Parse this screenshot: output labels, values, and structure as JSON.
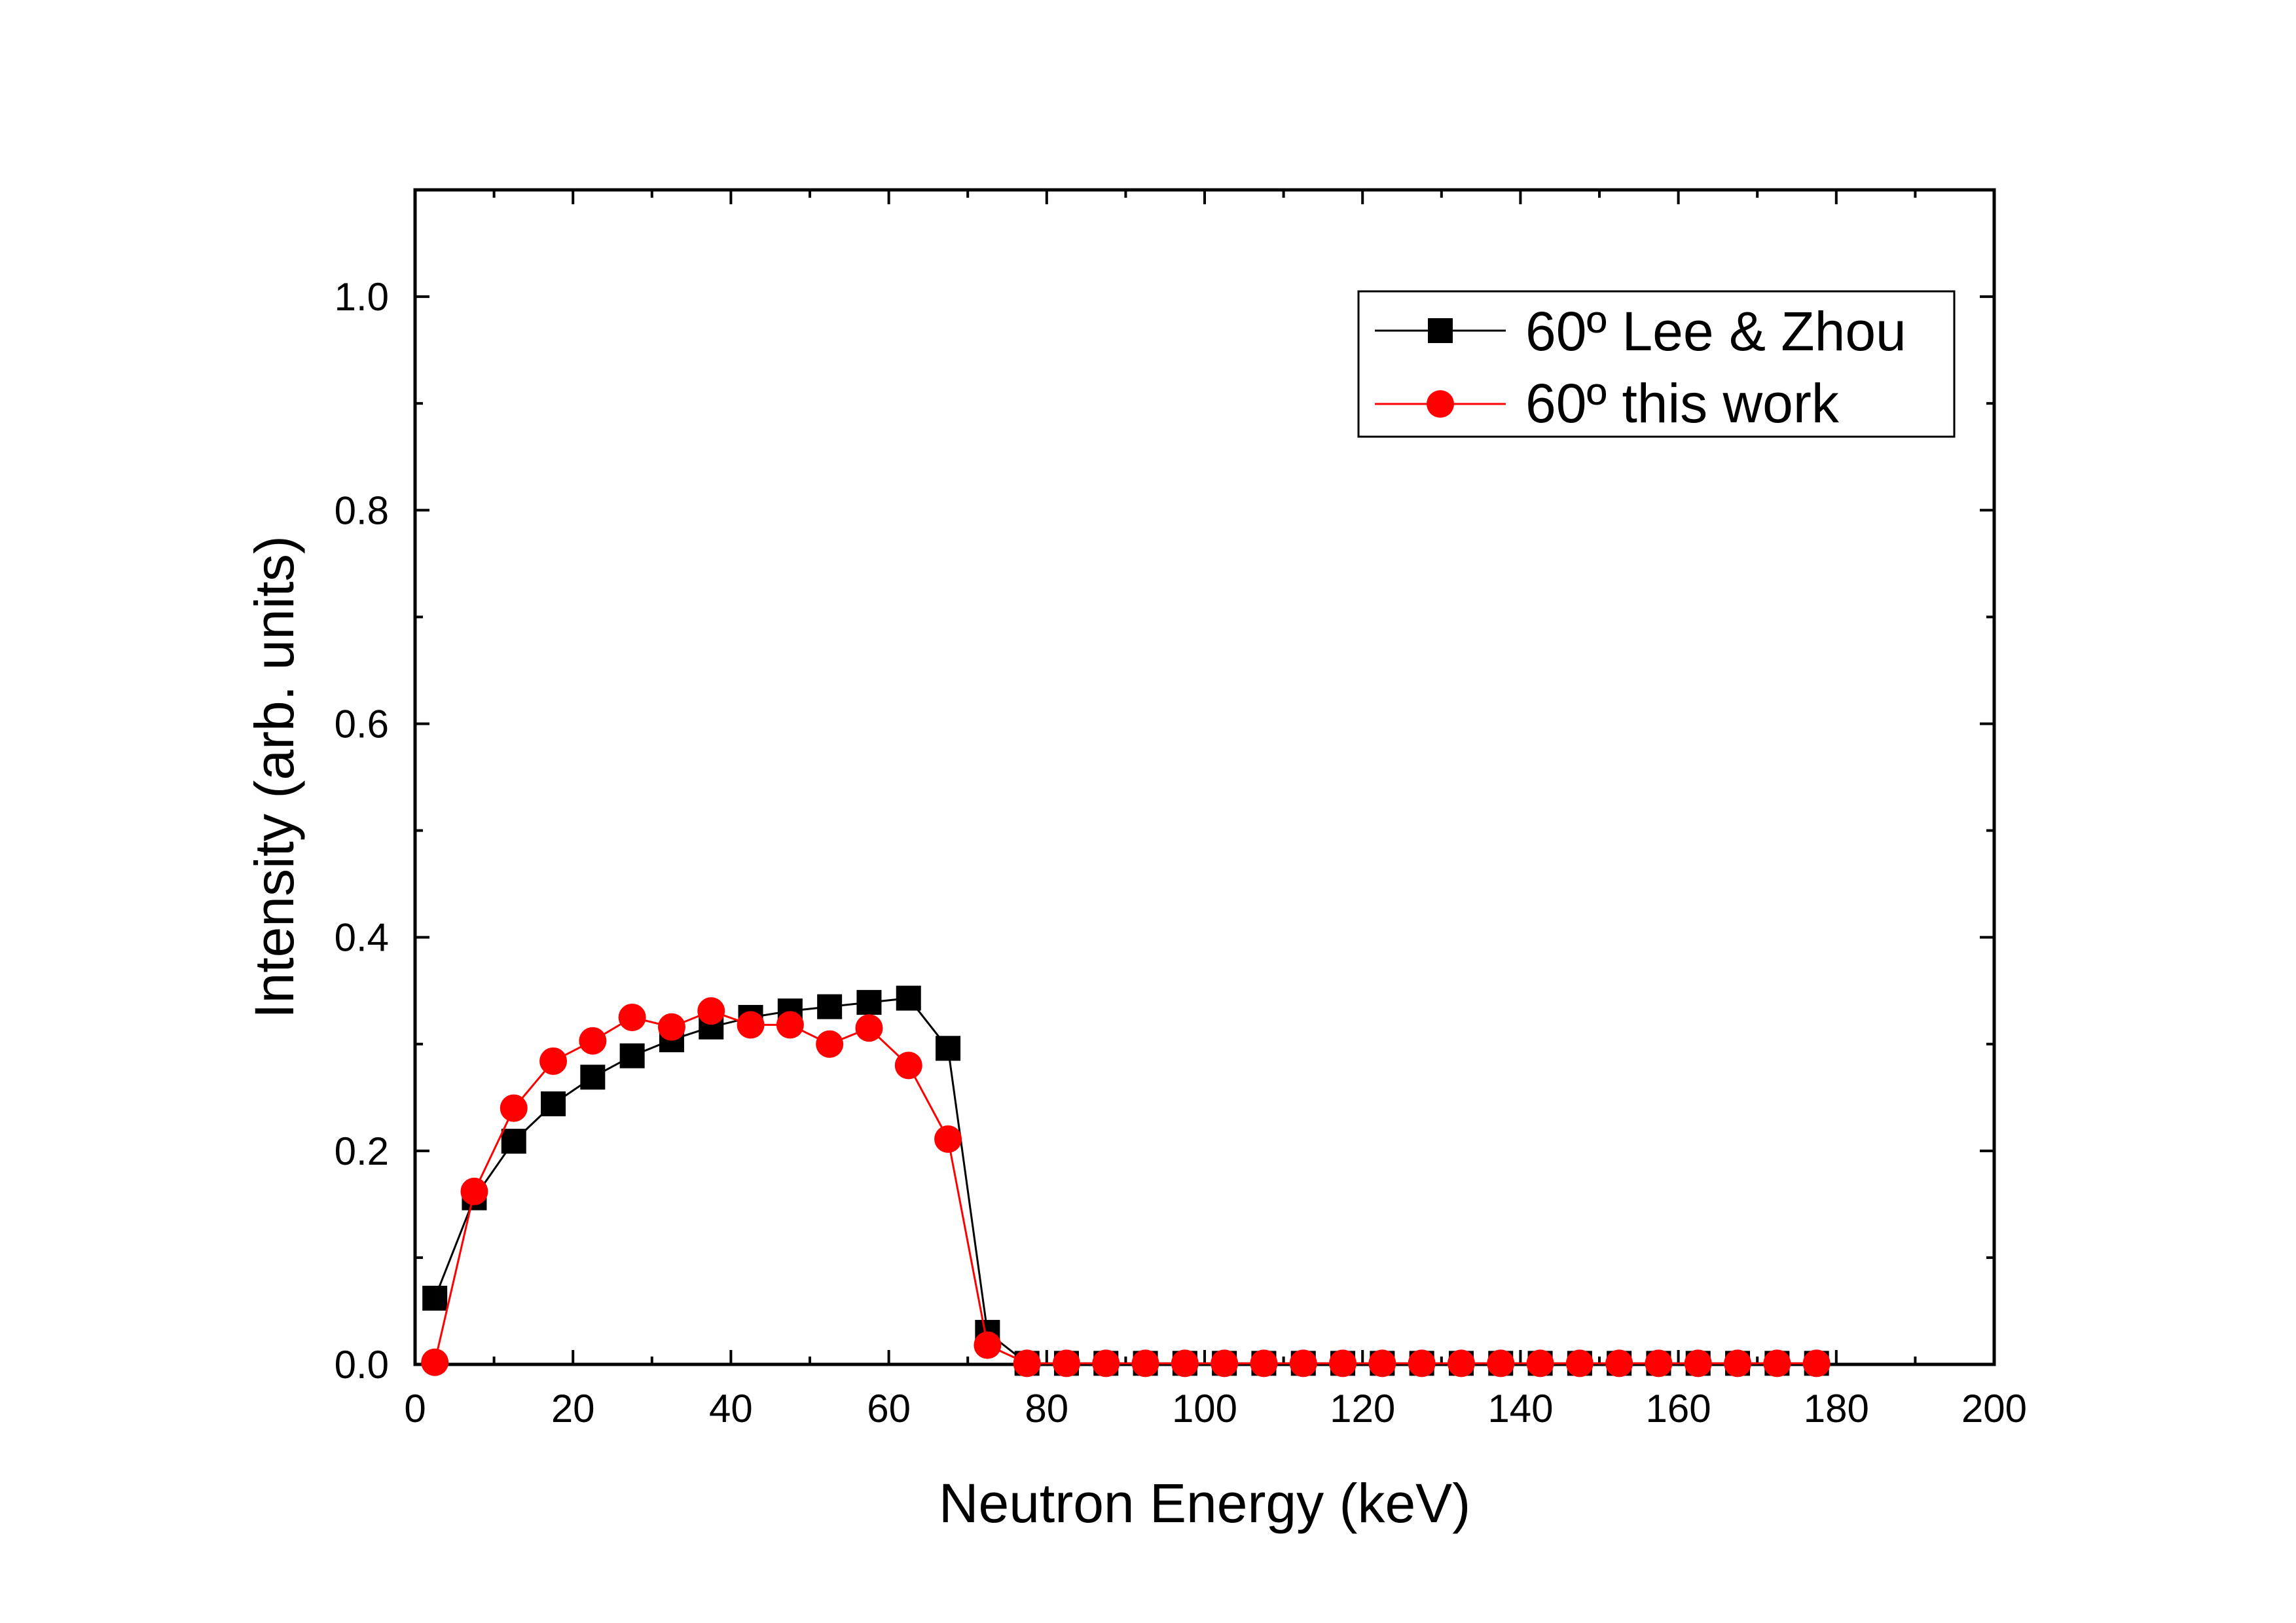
{
  "chart_data": {
    "type": "scatter",
    "title": "",
    "xlabel": "Neutron Energy (keV)",
    "ylabel": "Intensity (arb. units)",
    "xlim": [
      0,
      200
    ],
    "ylim": [
      0,
      1.1
    ],
    "xticks": [
      "0",
      "20",
      "40",
      "60",
      "80",
      "100",
      "120",
      "140",
      "160",
      "180",
      "200"
    ],
    "yticks": [
      "0.0",
      "0.2",
      "0.4",
      "0.6",
      "0.8",
      "1.0"
    ],
    "grid": false,
    "legend_position": "top-right",
    "series": [
      {
        "name": "60º Lee & Zhou",
        "marker": "square",
        "color": "#000000",
        "x": [
          2.5,
          7.5,
          12.5,
          17.5,
          22.5,
          27.5,
          32.5,
          37.5,
          42.5,
          47.5,
          52.5,
          57.5,
          62.5,
          67.5,
          72.5,
          77.5,
          82.5,
          87.5,
          92.5,
          97.5,
          102.5,
          107.5,
          112.5,
          117.5,
          122.5,
          127.5,
          132.5,
          137.5,
          142.5,
          147.5,
          152.5,
          157.5,
          162.5,
          167.5,
          172.5,
          177.5
        ],
        "y": [
          0.062,
          0.156,
          0.209,
          0.244,
          0.269,
          0.289,
          0.304,
          0.316,
          0.325,
          0.331,
          0.335,
          0.339,
          0.343,
          0.296,
          0.03,
          0.001,
          0.001,
          0.001,
          0.001,
          0.001,
          0.001,
          0.001,
          0.001,
          0.001,
          0.001,
          0.001,
          0.001,
          0.001,
          0.001,
          0.001,
          0.001,
          0.001,
          0.001,
          0.001,
          0.001,
          0.001
        ]
      },
      {
        "name": "60º this work",
        "marker": "circle",
        "color": "#ff0000",
        "x": [
          2.5,
          7.5,
          12.5,
          17.5,
          22.5,
          27.5,
          32.5,
          37.5,
          42.5,
          47.5,
          52.5,
          57.5,
          62.5,
          67.5,
          72.5,
          77.5,
          82.5,
          87.5,
          92.5,
          97.5,
          102.5,
          107.5,
          112.5,
          117.5,
          122.5,
          127.5,
          132.5,
          137.5,
          142.5,
          147.5,
          152.5,
          157.5,
          162.5,
          167.5,
          172.5,
          177.5
        ],
        "y": [
          0.002,
          0.162,
          0.24,
          0.284,
          0.303,
          0.325,
          0.316,
          0.331,
          0.318,
          0.318,
          0.3,
          0.315,
          0.28,
          0.211,
          0.018,
          0.001,
          0.001,
          0.001,
          0.001,
          0.001,
          0.001,
          0.001,
          0.001,
          0.001,
          0.001,
          0.001,
          0.001,
          0.001,
          0.001,
          0.001,
          0.001,
          0.001,
          0.001,
          0.001,
          0.001,
          0.001
        ]
      }
    ]
  }
}
